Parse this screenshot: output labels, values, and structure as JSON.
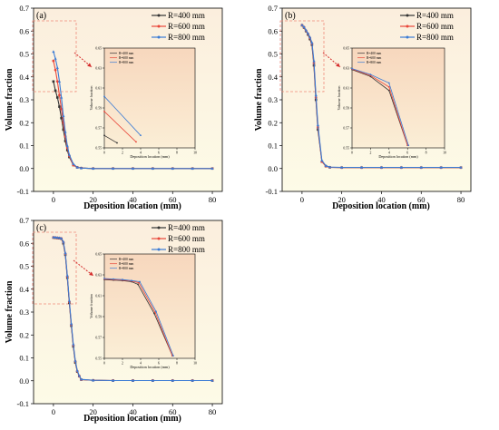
{
  "chart_data": [
    {
      "type": "line",
      "panel_label": "(a)",
      "xlabel": "Deposition location (mm)",
      "ylabel": "Volume fraction",
      "xlim": [
        -10,
        85
      ],
      "ylim": [
        -0.1,
        0.7
      ],
      "xticks": [
        "0",
        "20",
        "40",
        "60",
        "80"
      ],
      "yticks": [
        "-0.1",
        "0.0",
        "0.1",
        "0.2",
        "0.3",
        "0.4",
        "0.5",
        "0.6",
        "0.7"
      ],
      "legend_position": "top-right",
      "series": [
        {
          "name": "R=400 mm",
          "color": "#333333",
          "marker": "square",
          "x": [
            0,
            1,
            2,
            3,
            4,
            5,
            6,
            7,
            8,
            10,
            12,
            14,
            20,
            30,
            40,
            50,
            60,
            70,
            80
          ],
          "y": [
            0.38,
            0.34,
            0.31,
            0.27,
            0.22,
            0.17,
            0.12,
            0.08,
            0.05,
            0.015,
            0.005,
            0.002,
            0,
            0,
            0,
            0,
            0,
            0,
            0
          ]
        },
        {
          "name": "R=600 mm",
          "color": "#e8463a",
          "marker": "circle",
          "x": [
            0,
            1,
            2,
            3,
            4,
            5,
            6,
            7,
            8,
            10,
            12,
            14,
            20,
            30,
            40,
            50,
            60,
            70,
            80
          ],
          "y": [
            0.47,
            0.43,
            0.38,
            0.32,
            0.26,
            0.2,
            0.14,
            0.09,
            0.055,
            0.015,
            0.005,
            0.002,
            0,
            0,
            0,
            0,
            0,
            0,
            0
          ]
        },
        {
          "name": "R=800 mm",
          "color": "#3a7bd5",
          "marker": "triangle",
          "x": [
            0,
            1,
            2,
            3,
            4,
            5,
            6,
            7,
            8,
            10,
            12,
            14,
            20,
            30,
            40,
            50,
            60,
            70,
            80
          ],
          "y": [
            0.51,
            0.48,
            0.44,
            0.38,
            0.31,
            0.23,
            0.16,
            0.1,
            0.06,
            0.02,
            0.005,
            0.002,
            0,
            0,
            0,
            0,
            0,
            0,
            0
          ]
        }
      ],
      "inset": {
        "xlabel": "Deposition location (mm)",
        "ylabel": "Volume fraction",
        "xlim": [
          0,
          10
        ],
        "ylim": [
          0.55,
          0.65
        ],
        "xticks": [
          "0",
          "2",
          "4",
          "6",
          "8",
          "10"
        ],
        "yticks": [
          "0.55",
          "0.57",
          "0.59",
          "0.61",
          "0.63",
          "0.65"
        ],
        "legend": [
          "R=400 mm",
          "R=600 mm",
          "R=800 mm"
        ],
        "series": [
          {
            "x": [
              0,
              1.4
            ],
            "y": [
              0.5625,
              0.555
            ]
          },
          {
            "x": [
              0,
              3.5
            ],
            "y": [
              0.5865,
              0.556
            ]
          },
          {
            "x": [
              0,
              4.0
            ],
            "y": [
              0.6015,
              0.5625
            ]
          }
        ]
      }
    },
    {
      "type": "line",
      "panel_label": "(b)",
      "xlabel": "Deposition location (mm)",
      "ylabel": "Volume fraction",
      "xlim": [
        -10,
        85
      ],
      "ylim": [
        -0.1,
        0.7
      ],
      "xticks": [
        "0",
        "20",
        "40",
        "60",
        "80"
      ],
      "yticks": [
        "-0.1",
        "0.0",
        "0.1",
        "0.2",
        "0.3",
        "0.4",
        "0.5",
        "0.6",
        "0.7"
      ],
      "legend_position": "top-right",
      "series": [
        {
          "name": "R=400 mm",
          "color": "#333333",
          "marker": "square",
          "x": [
            0,
            1,
            2,
            3,
            4,
            5,
            6,
            7,
            8,
            10,
            12,
            14,
            20,
            30,
            40,
            50,
            60,
            70,
            80
          ],
          "y": [
            0.625,
            0.615,
            0.6,
            0.585,
            0.565,
            0.54,
            0.45,
            0.3,
            0.17,
            0.03,
            0.01,
            0.005,
            0.004,
            0.004,
            0.004,
            0.004,
            0.004,
            0.004,
            0.004
          ]
        },
        {
          "name": "R=600 mm",
          "color": "#e8463a",
          "marker": "circle",
          "x": [
            0,
            1,
            2,
            3,
            4,
            5,
            6,
            7,
            8,
            10,
            12,
            14,
            20,
            30,
            40,
            50,
            60,
            70,
            80
          ],
          "y": [
            0.626,
            0.617,
            0.602,
            0.588,
            0.57,
            0.545,
            0.46,
            0.31,
            0.18,
            0.03,
            0.01,
            0.005,
            0.004,
            0.004,
            0.004,
            0.004,
            0.004,
            0.004,
            0.004
          ]
        },
        {
          "name": "R=800 mm",
          "color": "#3a7bd5",
          "marker": "triangle",
          "x": [
            0,
            1,
            2,
            3,
            4,
            5,
            6,
            7,
            8,
            10,
            12,
            14,
            20,
            30,
            40,
            50,
            60,
            70,
            80
          ],
          "y": [
            0.627,
            0.618,
            0.604,
            0.59,
            0.573,
            0.55,
            0.47,
            0.32,
            0.19,
            0.035,
            0.012,
            0.006,
            0.005,
            0.005,
            0.005,
            0.005,
            0.005,
            0.005,
            0.005
          ]
        }
      ],
      "inset": {
        "xlabel": "Deposition location (mm)",
        "ylabel": "Volume fraction",
        "xlim": [
          0,
          10
        ],
        "ylim": [
          0.55,
          0.65
        ],
        "xticks": [
          "0",
          "2",
          "4",
          "6",
          "8",
          "10"
        ],
        "yticks": [
          "0.55",
          "0.57",
          "0.59",
          "0.61",
          "0.63",
          "0.65"
        ],
        "legend": [
          "R=400 mm",
          "R=600 mm",
          "R=800 mm"
        ],
        "series": [
          {
            "x": [
              0,
              2,
              4,
              6
            ],
            "y": [
              0.6285,
              0.6215,
              0.6075,
              0.5525
            ]
          },
          {
            "x": [
              0,
              2,
              4,
              6
            ],
            "y": [
              0.629,
              0.6225,
              0.611,
              0.5525
            ]
          },
          {
            "x": [
              0,
              2,
              4,
              6.1
            ],
            "y": [
              0.6295,
              0.6235,
              0.615,
              0.5525
            ]
          }
        ]
      }
    },
    {
      "type": "line",
      "panel_label": "(c)",
      "xlabel": "Deposition location (mm)",
      "ylabel": "Volume fraction",
      "xlim": [
        -10,
        85
      ],
      "ylim": [
        -0.1,
        0.7
      ],
      "xticks": [
        "0",
        "20",
        "40",
        "60",
        "80"
      ],
      "yticks": [
        "-0.1",
        "0.0",
        "0.1",
        "0.2",
        "0.3",
        "0.4",
        "0.5",
        "0.6",
        "0.7"
      ],
      "legend_position": "top-right",
      "series": [
        {
          "name": "R=400 mm",
          "color": "#333333",
          "marker": "square",
          "x": [
            0,
            1,
            2,
            3,
            4,
            5,
            6,
            7,
            8,
            9,
            10,
            11,
            12,
            13,
            14,
            20,
            30,
            40,
            50,
            60,
            70,
            80
          ],
          "y": [
            0.625,
            0.624,
            0.623,
            0.622,
            0.62,
            0.6,
            0.55,
            0.45,
            0.34,
            0.24,
            0.15,
            0.08,
            0.04,
            0.02,
            0.005,
            0.002,
            0.001,
            0.001,
            0.001,
            0.001,
            0.001,
            0.001
          ]
        },
        {
          "name": "R=600 mm",
          "color": "#e8463a",
          "marker": "circle",
          "x": [
            0,
            1,
            2,
            3,
            4,
            5,
            6,
            7,
            8,
            9,
            10,
            11,
            12,
            13,
            14,
            20,
            30,
            40,
            50,
            60,
            70,
            80
          ],
          "y": [
            0.626,
            0.625,
            0.624,
            0.623,
            0.621,
            0.605,
            0.555,
            0.455,
            0.345,
            0.245,
            0.155,
            0.085,
            0.042,
            0.02,
            0.005,
            0.002,
            0.001,
            0.001,
            0.001,
            0.001,
            0.001,
            0.001
          ]
        },
        {
          "name": "R=800 mm",
          "color": "#3a7bd5",
          "marker": "triangle",
          "x": [
            0,
            1,
            2,
            3,
            4,
            5,
            6,
            7,
            8,
            9,
            10,
            11,
            12,
            13,
            14,
            20,
            30,
            40,
            50,
            60,
            70,
            80
          ],
          "y": [
            0.627,
            0.626,
            0.625,
            0.624,
            0.622,
            0.607,
            0.558,
            0.46,
            0.35,
            0.25,
            0.16,
            0.088,
            0.045,
            0.022,
            0.006,
            0.002,
            0.001,
            0.001,
            0.001,
            0.001,
            0.001,
            0.001
          ]
        }
      ],
      "inset": {
        "xlabel": "Deposition location (mm)",
        "ylabel": "Volume fraction",
        "xlim": [
          0,
          10
        ],
        "ylim": [
          0.55,
          0.65
        ],
        "xticks": [
          "0",
          "2",
          "4",
          "6",
          "8",
          "10"
        ],
        "yticks": [
          "0.55",
          "0.57",
          "0.59",
          "0.61",
          "0.63",
          "0.65"
        ],
        "legend": [
          "R=400 mm",
          "R=600 mm",
          "R=800 mm"
        ],
        "series": [
          {
            "x": [
              0,
              1,
              2,
              3,
              3.7,
              5.5,
              7.5
            ],
            "y": [
              0.6255,
              0.625,
              0.6245,
              0.6235,
              0.621,
              0.593,
              0.5525
            ]
          },
          {
            "x": [
              0,
              1,
              2,
              3,
              3.8,
              5.6,
              7.5
            ],
            "y": [
              0.626,
              0.6255,
              0.625,
              0.624,
              0.6225,
              0.594,
              0.5525
            ]
          },
          {
            "x": [
              0,
              1,
              2,
              3,
              3.9,
              5.7,
              7.6
            ],
            "y": [
              0.6265,
              0.626,
              0.6255,
              0.6245,
              0.6235,
              0.595,
              0.5525
            ]
          }
        ]
      }
    }
  ]
}
